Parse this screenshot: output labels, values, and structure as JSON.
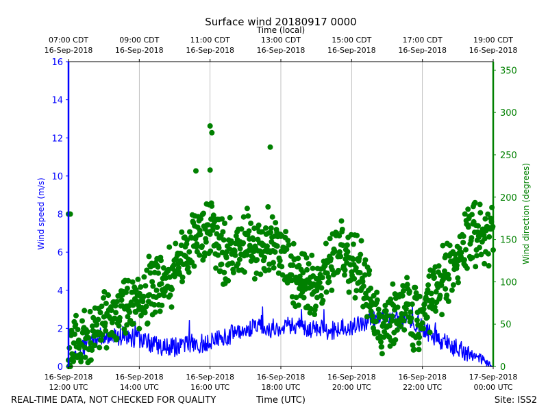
{
  "chart_data": {
    "type": "line+scatter",
    "title": "Surface wind 20180917 0000",
    "top_axis": {
      "label": "Time (local)",
      "ticks": [
        {
          "time": "07:00 CDT",
          "date": "16-Sep-2018"
        },
        {
          "time": "09:00 CDT",
          "date": "16-Sep-2018"
        },
        {
          "time": "11:00 CDT",
          "date": "16-Sep-2018"
        },
        {
          "time": "13:00 CDT",
          "date": "16-Sep-2018"
        },
        {
          "time": "15:00 CDT",
          "date": "16-Sep-2018"
        },
        {
          "time": "17:00 CDT",
          "date": "16-Sep-2018"
        },
        {
          "time": "19:00 CDT",
          "date": "16-Sep-2018"
        }
      ]
    },
    "bottom_axis": {
      "label": "Time (UTC)",
      "xlim_hours_utc": [
        12,
        24
      ],
      "tick_hours": [
        12,
        14,
        16,
        18,
        20,
        22,
        24
      ],
      "ticks": [
        {
          "date": "16-Sep-2018",
          "time": "12:00 UTC"
        },
        {
          "date": "16-Sep-2018",
          "time": "14:00 UTC"
        },
        {
          "date": "16-Sep-2018",
          "time": "16:00 UTC"
        },
        {
          "date": "16-Sep-2018",
          "time": "18:00 UTC"
        },
        {
          "date": "16-Sep-2018",
          "time": "20:00 UTC"
        },
        {
          "date": "16-Sep-2018",
          "time": "22:00 UTC"
        },
        {
          "date": "17-Sep-2018",
          "time": "00:00 UTC"
        }
      ]
    },
    "left_axis": {
      "label": "Wind speed (m/s)",
      "ylim": [
        0,
        16
      ],
      "ticks": [
        0,
        2,
        4,
        6,
        8,
        10,
        12,
        14,
        16
      ],
      "color": "#0000ff"
    },
    "right_axis": {
      "label": "Wind direction (degrees)",
      "ylim": [
        0,
        360
      ],
      "ticks": [
        0,
        50,
        100,
        150,
        200,
        250,
        300,
        350
      ],
      "color": "#008000"
    },
    "grid": "vertical at bottom ticks",
    "series": [
      {
        "name": "Wind speed",
        "kind": "line",
        "axis": "left",
        "color": "#0000ff",
        "x_hours_utc": [
          12.0,
          12.25,
          12.5,
          12.75,
          13.0,
          13.25,
          13.5,
          13.75,
          14.0,
          14.25,
          14.5,
          14.75,
          15.0,
          15.25,
          15.5,
          15.75,
          16.0,
          16.25,
          16.5,
          16.75,
          17.0,
          17.25,
          17.5,
          17.75,
          18.0,
          18.25,
          18.5,
          18.75,
          19.0,
          19.25,
          19.5,
          19.75,
          20.0,
          20.25,
          20.5,
          20.75,
          21.0,
          21.25,
          21.5,
          21.75,
          22.0,
          22.25,
          22.5,
          22.75,
          23.0,
          23.25,
          23.5,
          23.75,
          24.0
        ],
        "values": [
          0.1,
          0.8,
          1.2,
          1.4,
          1.6,
          1.5,
          1.6,
          1.5,
          1.4,
          1.3,
          1.1,
          1.0,
          1.0,
          1.1,
          1.2,
          1.2,
          1.3,
          1.4,
          1.6,
          1.8,
          1.9,
          2.0,
          2.1,
          2.0,
          2.1,
          2.2,
          2.1,
          2.0,
          2.0,
          1.9,
          1.9,
          2.0,
          2.1,
          2.2,
          2.4,
          2.6,
          2.8,
          2.5,
          2.4,
          2.3,
          2.0,
          1.7,
          1.4,
          1.1,
          0.9,
          0.7,
          0.5,
          0.3,
          0.0
        ],
        "noise_amplitude": 0.5
      },
      {
        "name": "Wind direction",
        "kind": "scatter",
        "axis": "right",
        "color": "#008000",
        "x_hours_utc": [
          12.0,
          12.25,
          12.5,
          12.75,
          13.0,
          13.25,
          13.5,
          13.75,
          14.0,
          14.25,
          14.5,
          14.75,
          15.0,
          15.25,
          15.5,
          15.75,
          16.0,
          16.25,
          16.5,
          16.75,
          17.0,
          17.25,
          17.5,
          17.75,
          18.0,
          18.25,
          18.5,
          18.75,
          19.0,
          19.25,
          19.5,
          19.75,
          20.0,
          20.25,
          20.5,
          20.75,
          21.0,
          21.25,
          21.5,
          21.75,
          22.0,
          22.25,
          22.5,
          22.75,
          23.0,
          23.25,
          23.5,
          23.75,
          24.0
        ],
        "values": [
          20,
          30,
          40,
          45,
          55,
          60,
          65,
          70,
          80,
          90,
          100,
          100,
          110,
          130,
          150,
          160,
          170,
          140,
          130,
          140,
          145,
          140,
          140,
          150,
          150,
          120,
          100,
          100,
          90,
          110,
          130,
          140,
          120,
          120,
          80,
          60,
          50,
          60,
          70,
          60,
          60,
          80,
          100,
          110,
          120,
          150,
          160,
          160,
          160
        ],
        "spread": 45,
        "outliers": [
          {
            "x": 12.0,
            "y": 180
          },
          {
            "x": 12.05,
            "y": 180
          },
          {
            "x": 16.0,
            "y": 284
          },
          {
            "x": 16.05,
            "y": 276
          },
          {
            "x": 17.7,
            "y": 259
          },
          {
            "x": 16.0,
            "y": 232
          },
          {
            "x": 15.6,
            "y": 231
          },
          {
            "x": 16.25,
            "y": 140
          },
          {
            "x": 21.9,
            "y": 20
          }
        ]
      }
    ]
  },
  "footer": {
    "disclaimer": "REAL-TIME DATA, NOT CHECKED FOR QUALITY",
    "xlabel": "Time (UTC)",
    "site": "Site: ISS2"
  }
}
